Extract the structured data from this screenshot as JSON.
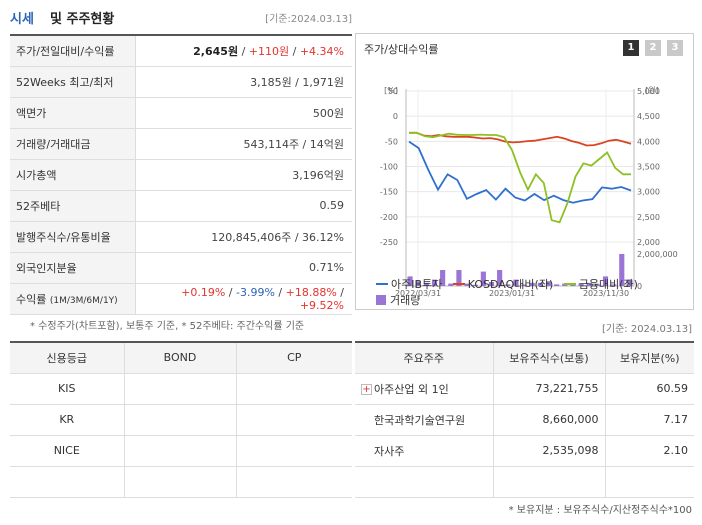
{
  "header": {
    "title_a": "시세",
    "title_b": "및 주주현황",
    "date": "[기준:2024.03.13]"
  },
  "quote": {
    "price_label": "주가/전일대비/수익률",
    "price": "2,645원",
    "change": "+110원",
    "rate": "+4.34%",
    "w52_label": "52Weeks 최고/최저",
    "w52_value": "3,185원 / 1,971원",
    "par_label": "액면가",
    "par_value": "500원",
    "volume_label": "거래량/거래대금",
    "volume_value": "543,114주 / 14억원",
    "mcap_label": "시가총액",
    "mcap_value": "3,196억원",
    "beta_label": "52주베타",
    "beta_value": "0.59",
    "shares_label": "발행주식수/유통비율",
    "shares_value": "120,845,406주 / 36.12%",
    "foreign_label": "외국인지분율",
    "foreign_value": "0.71%",
    "ret_label": "수익률",
    "ret_periods": "(1M/3M/6M/1Y)",
    "ret_1m": "+0.19%",
    "ret_3m": "-3.99%",
    "ret_6m": "+18.88%",
    "ret_1y": "+9.52%"
  },
  "notes": "* 수정주가(차트포함), 보통주 기준, * 52주베타: 주간수익률 기준",
  "chart_panel": {
    "title": "주가/상대수익률",
    "tabs": [
      "1",
      "2",
      "3"
    ]
  },
  "chart_data": {
    "type": "line",
    "left_axis_unit": "[%]",
    "right_axis_unit": "[원]",
    "left_ticks": [
      "50",
      "0",
      "-50",
      "-100",
      "-150",
      "-200",
      "-250"
    ],
    "right_ticks": [
      "5,000",
      "4,500",
      "4,000",
      "3,500",
      "3,000",
      "2,500",
      "2,000"
    ],
    "volume_ticks": [
      "2,000,000",
      "0"
    ],
    "ylim_left": [
      -250,
      50
    ],
    "ylim_right": [
      2000,
      5000
    ],
    "x_labels": [
      "2022/03/31",
      "2023/01/31",
      "2023/11/30"
    ],
    "series": [
      {
        "name": "아주IB투자",
        "axis": "right",
        "color": "#2f6fd0",
        "values": [
          4300,
          4150,
          3650,
          3200,
          3550,
          3420,
          2990,
          3100,
          3190,
          2970,
          3220,
          3020,
          2950,
          3100,
          2960,
          3060,
          2960,
          2900,
          2950,
          2980,
          3250,
          3220,
          3260,
          3180
        ]
      },
      {
        "name": "KOSDAQ대비(좌)",
        "axis": "left",
        "color": "#d9451e",
        "values": [
          0,
          0,
          -6,
          -8,
          -5,
          -8,
          -9,
          -9,
          -9,
          -11,
          -13,
          -12,
          -15,
          -20,
          -22,
          -21,
          -19,
          -18,
          -15,
          -12,
          -9,
          -13,
          -19,
          -23,
          -29,
          -28,
          -24,
          -18,
          -16,
          -20,
          -25
        ]
      },
      {
        "name": "금융대비(좌)",
        "axis": "left",
        "color": "#8ec022",
        "values": [
          0,
          0,
          -8,
          -10,
          -6,
          -2,
          -4,
          -5,
          -5,
          -4,
          -5,
          -5,
          -10,
          -40,
          -90,
          -130,
          -95,
          -115,
          -200,
          -205,
          -160,
          -100,
          -70,
          -75,
          -60,
          -45,
          -80,
          -95,
          -95
        ]
      },
      {
        "name": "거래량",
        "axis": "volume",
        "color": "#9b75d6",
        "values": [
          600000,
          300000,
          200000,
          400000,
          1000000,
          150000,
          1000000,
          150000,
          80000,
          900000,
          250000,
          1000000,
          100000,
          400000,
          100000,
          200000,
          200000,
          300000,
          100000,
          150000,
          100000,
          150000,
          200000,
          100000,
          600000,
          100000,
          2000000,
          400000
        ]
      }
    ]
  },
  "credit": {
    "headers": [
      "신용등급",
      "BOND",
      "CP"
    ],
    "rows": [
      {
        "agency": "KIS",
        "bond": "",
        "cp": ""
      },
      {
        "agency": "KR",
        "bond": "",
        "cp": ""
      },
      {
        "agency": "NICE",
        "bond": "",
        "cp": ""
      },
      {
        "agency": "",
        "bond": "",
        "cp": ""
      }
    ]
  },
  "holders": {
    "date": "[기준: 2024.03.13]",
    "headers": [
      "주요주주",
      "보유주식수(보통)",
      "보유지분(%)"
    ],
    "rows": [
      {
        "name": "아주산업 외 1인",
        "shares": "73,221,755",
        "pct": "60.59",
        "expandable": true
      },
      {
        "name": "한국과학기술연구원",
        "shares": "8,660,000",
        "pct": "7.17"
      },
      {
        "name": "자사주",
        "shares": "2,535,098",
        "pct": "2.10"
      },
      {
        "name": "",
        "shares": "",
        "pct": ""
      }
    ],
    "note": "* 보유지분 : 보유주식수/지산정주식수*100"
  }
}
